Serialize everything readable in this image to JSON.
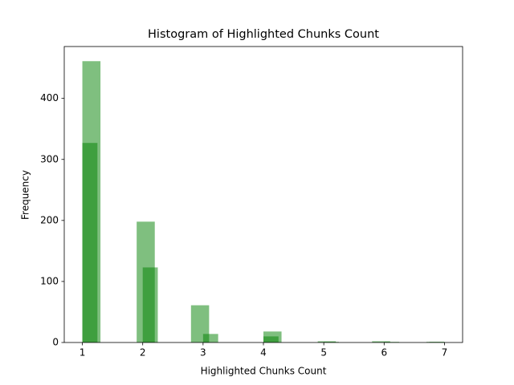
{
  "chart_data": {
    "type": "histogram",
    "title": "Histogram of Highlighted Chunks Count",
    "x_label": "Highlighted Chunks Count",
    "y_label": "Frequency",
    "alpha": 0.5,
    "series": [
      {
        "color": "green",
        "bins": [
          1,
          1.3,
          1.6,
          1.9,
          2.2,
          2.5,
          2.8,
          3.1,
          3.4,
          3.7,
          4.0,
          4.3,
          4.6,
          4.9,
          5.2,
          5.5,
          5.8,
          6.1,
          6.4,
          6.7,
          7.0
        ],
        "values": [
          461,
          0,
          0,
          198,
          0,
          0,
          61,
          0,
          0,
          0,
          18,
          0,
          0,
          2,
          0,
          0,
          2,
          0,
          0,
          1
        ]
      },
      {
        "color": "green",
        "bins": [
          1,
          1.25,
          1.5,
          1.75,
          2,
          2.25,
          2.5,
          2.75,
          3,
          3.25,
          3.5,
          3.75,
          4,
          4.25,
          4.5,
          4.75,
          5,
          5.25,
          5.5,
          5.75,
          6,
          6.25,
          6.5,
          6.75,
          7
        ],
        "values": [
          327,
          0,
          0,
          0,
          123,
          0,
          0,
          0,
          14,
          0,
          0,
          0,
          10,
          0,
          0,
          0,
          1,
          0,
          0,
          0,
          1,
          0,
          0,
          1
        ]
      }
    ],
    "xlim": [
      0.7,
      7.3
    ],
    "xticks": [
      1,
      2,
      3,
      4,
      5,
      6,
      7
    ],
    "ylim": [
      0,
      485
    ],
    "yticks": [
      0,
      100,
      200,
      300,
      400
    ],
    "grid": false
  }
}
